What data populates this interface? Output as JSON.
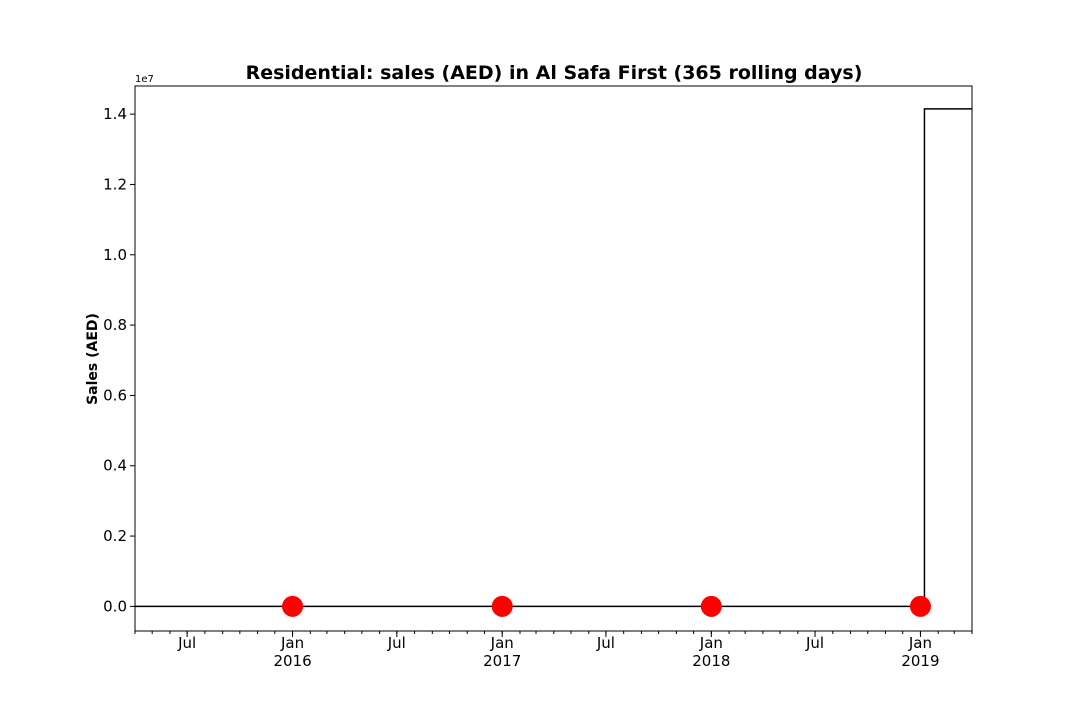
{
  "chart_data": {
    "type": "line",
    "title": "Residential: sales (AED) in Al Safa First (365 rolling days)",
    "ylabel": "Sales (AED)",
    "xlabel": "",
    "y_scale_label": "1e7",
    "y_scale": 10000000,
    "xlim": [
      "2015-04-01",
      "2019-04-01"
    ],
    "ylim": [
      -700000,
      14800000
    ],
    "yticks": [
      {
        "value": 0,
        "label": "0.0"
      },
      {
        "value": 2000000,
        "label": "0.2"
      },
      {
        "value": 4000000,
        "label": "0.4"
      },
      {
        "value": 6000000,
        "label": "0.6"
      },
      {
        "value": 8000000,
        "label": "0.8"
      },
      {
        "value": 10000000,
        "label": "1.0"
      },
      {
        "value": 12000000,
        "label": "1.2"
      },
      {
        "value": 14000000,
        "label": "1.4"
      }
    ],
    "xticks_major": [
      {
        "date": "2015-07-01",
        "label": "Jul",
        "year": ""
      },
      {
        "date": "2016-01-01",
        "label": "Jan",
        "year": "2016"
      },
      {
        "date": "2016-07-01",
        "label": "Jul",
        "year": ""
      },
      {
        "date": "2017-01-01",
        "label": "Jan",
        "year": "2017"
      },
      {
        "date": "2017-07-01",
        "label": "Jul",
        "year": ""
      },
      {
        "date": "2018-01-01",
        "label": "Jan",
        "year": "2018"
      },
      {
        "date": "2018-07-01",
        "label": "Jul",
        "year": ""
      },
      {
        "date": "2019-01-01",
        "label": "Jan",
        "year": "2019"
      }
    ],
    "series": [
      {
        "style": "step",
        "color": "#000000",
        "points": [
          {
            "x": "2015-04-01",
            "y": 0
          },
          {
            "x": "2019-01-08",
            "y": 0
          },
          {
            "x": "2019-01-08",
            "y": 14150000
          },
          {
            "x": "2019-04-01",
            "y": 14150000
          }
        ]
      }
    ],
    "markers": {
      "color": "#ff0000",
      "points": [
        {
          "x": "2016-01-01",
          "y": 0
        },
        {
          "x": "2017-01-01",
          "y": 0
        },
        {
          "x": "2018-01-01",
          "y": 0
        },
        {
          "x": "2019-01-01",
          "y": 0
        }
      ]
    },
    "grid": false,
    "legend": "none"
  }
}
